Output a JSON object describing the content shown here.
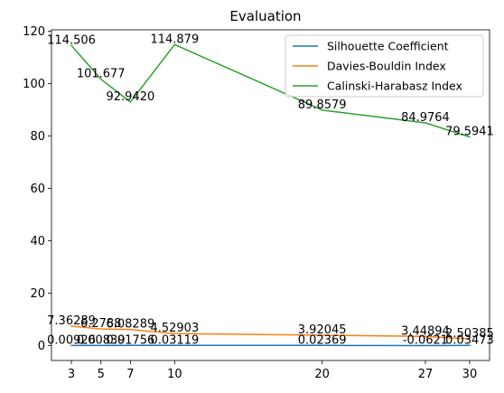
{
  "chart_data": {
    "type": "line",
    "title": "Evaluation",
    "xlabel": "",
    "ylabel": "",
    "x": [
      3,
      5,
      7,
      10,
      20,
      27,
      30
    ],
    "xticks": [
      3,
      5,
      7,
      10,
      20,
      27,
      30
    ],
    "yticks": [
      0,
      20,
      40,
      60,
      80,
      100,
      120
    ],
    "xlim": [
      1.65,
      31.35
    ],
    "ylim": [
      -5.74,
      120.5
    ],
    "grid": false,
    "legend_position": "upper right",
    "series": [
      {
        "name": "Silhouette Coefficient",
        "color": "#1f77b4",
        "values": [
          0.00926,
          0.00839,
          0.01756,
          0.03119,
          0.02369,
          -0.0621,
          0.03473
        ],
        "labels": [
          "0.00926",
          "0.00839",
          "0.01756",
          "0.03119",
          "0.02369",
          "-0.0621",
          "0.03473"
        ]
      },
      {
        "name": "Davies-Bouldin Index",
        "color": "#ff7f0e",
        "values": [
          7.36289,
          6.2788,
          6.08289,
          4.52903,
          3.92045,
          3.44894,
          2.50385
        ],
        "labels": [
          "7.36289",
          "6.2788",
          "6.08289",
          "4.52903",
          "3.92045",
          "3.44894",
          "2.50385"
        ]
      },
      {
        "name": "Calinski-Harabasz Index",
        "color": "#2ca02c",
        "values": [
          114.506,
          101.677,
          92.942,
          114.879,
          89.8579,
          84.9764,
          79.5941
        ],
        "labels": [
          "114.506",
          "101.677",
          "92.9420",
          "114.879",
          "89.8579",
          "84.9764",
          "79.5941"
        ]
      }
    ]
  }
}
